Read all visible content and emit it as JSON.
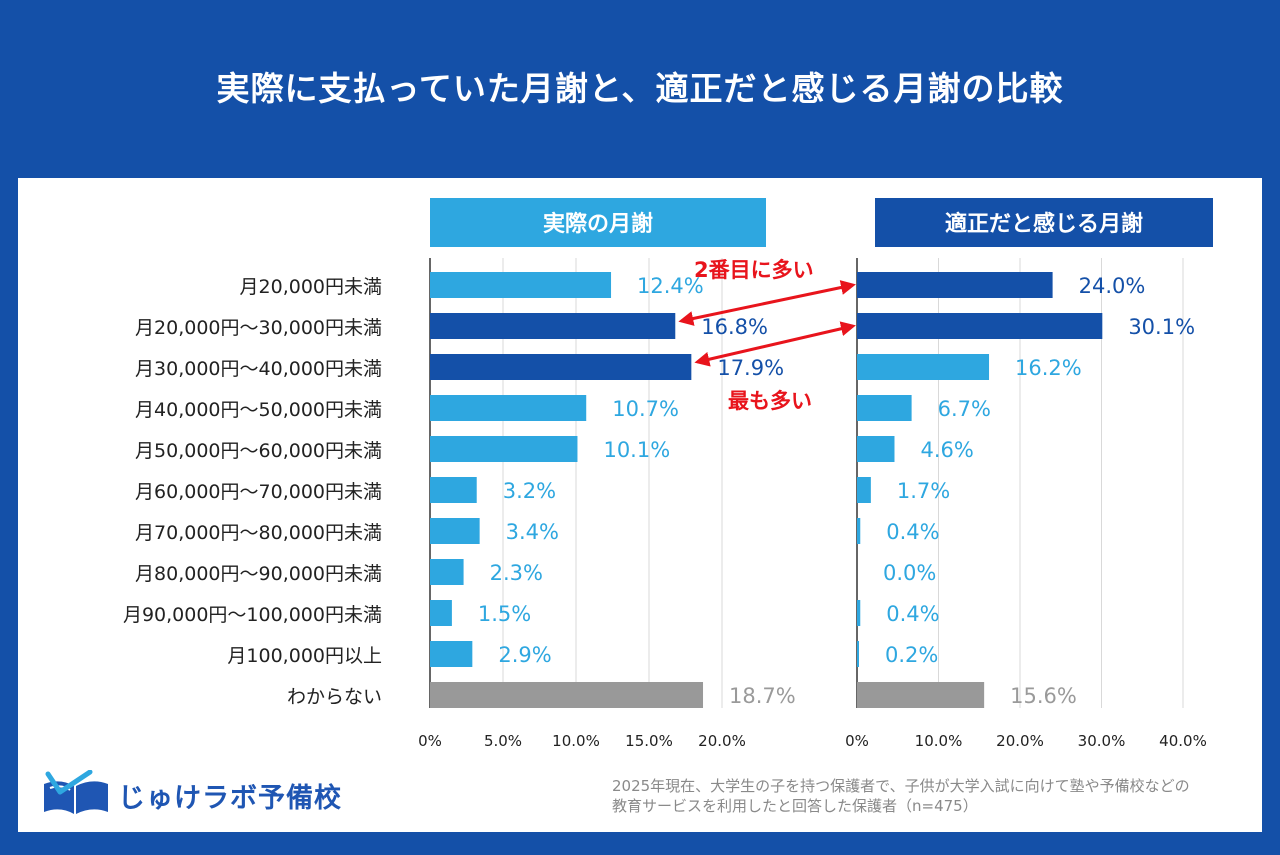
{
  "title": "実際に支払っていた月謝と、適正だと感じる月謝の比較",
  "footnote": {
    "line1": "2025年現在、大学生の子を持つ保護者で、子供が大学入試に向けて塾や予備校などの",
    "line2": "教育サービスを利用したと回答した保護者（n=475）"
  },
  "logo": {
    "text": "じゅけラボ予備校",
    "icon": "book-icon"
  },
  "annotations": {
    "second_most": "2番目に多い",
    "most": "最も多い",
    "color": "#e8141c"
  },
  "colors": {
    "light_bar": "#2ea7e0",
    "dark_bar": "#1450a8",
    "gray_bar": "#999999",
    "light_label": "#2ea7e0",
    "dark_label": "#1450a8",
    "gray_label": "#9a9a9a",
    "grid": "#d9d9d9",
    "header_left": "#2ea7e0",
    "header_right": "#1450a8"
  },
  "chart_data": [
    {
      "type": "bar",
      "orientation": "horizontal",
      "title": "実際の月謝",
      "categories": [
        "月20,000円未満",
        "月20,000円〜30,000円未満",
        "月30,000円〜40,000円未満",
        "月40,000円〜50,000円未満",
        "月50,000円〜60,000円未満",
        "月60,000円〜70,000円未満",
        "月70,000円〜80,000円未満",
        "月80,000円〜90,000円未満",
        "月90,000円〜100,000円未満",
        "月100,000円以上",
        "わからない"
      ],
      "values": [
        12.4,
        16.8,
        17.9,
        10.7,
        10.1,
        3.2,
        3.4,
        2.3,
        1.5,
        2.9,
        18.7
      ],
      "value_labels": [
        "12.4%",
        "16.8%",
        "17.9%",
        "10.7%",
        "10.1%",
        "3.2%",
        "3.4%",
        "2.3%",
        "1.5%",
        "2.9%",
        "18.7%"
      ],
      "bar_styles": [
        "light",
        "dark",
        "dark",
        "light",
        "light",
        "light",
        "light",
        "light",
        "light",
        "light",
        "gray"
      ],
      "xlim": [
        0,
        20
      ],
      "ticks": [
        0,
        5,
        10,
        15,
        20
      ],
      "tick_labels": [
        "0%",
        "5.0%",
        "10.0%",
        "15.0%",
        "20.0%"
      ],
      "grid": true
    },
    {
      "type": "bar",
      "orientation": "horizontal",
      "title": "適正だと感じる月謝",
      "categories": [
        "月20,000円未満",
        "月20,000円〜30,000円未満",
        "月30,000円〜40,000円未満",
        "月40,000円〜50,000円未満",
        "月50,000円〜60,000円未満",
        "月60,000円〜70,000円未満",
        "月70,000円〜80,000円未満",
        "月80,000円〜90,000円未満",
        "月90,000円〜100,000円未満",
        "月100,000円以上",
        "わからない"
      ],
      "values": [
        24.0,
        30.1,
        16.2,
        6.7,
        4.6,
        1.7,
        0.4,
        0.0,
        0.4,
        0.2,
        15.6
      ],
      "value_labels": [
        "24.0%",
        "30.1%",
        "16.2%",
        "6.7%",
        "4.6%",
        "1.7%",
        "0.4%",
        "0.0%",
        "0.4%",
        "0.2%",
        "15.6%"
      ],
      "bar_styles": [
        "dark",
        "dark",
        "light",
        "light",
        "light",
        "light",
        "light",
        "light",
        "light",
        "light",
        "gray"
      ],
      "xlim": [
        0,
        40
      ],
      "ticks": [
        0,
        10,
        20,
        30,
        40
      ],
      "tick_labels": [
        "0%",
        "10.0%",
        "20.0%",
        "30.0%",
        "40.0%"
      ],
      "grid": true
    }
  ]
}
